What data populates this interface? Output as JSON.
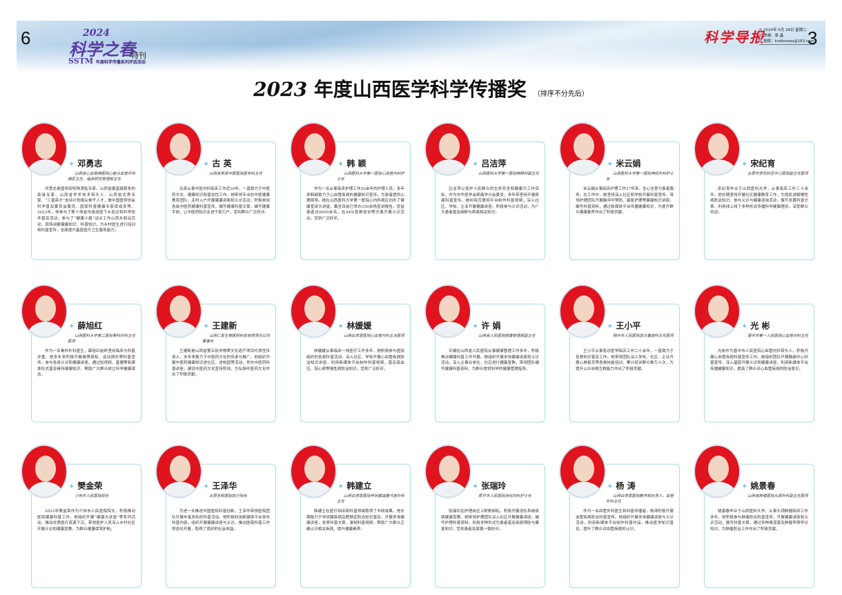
{
  "header": {
    "left_page_number": "6",
    "right_page_number": "3",
    "logo_year": "2024",
    "logo_main": "科学之春",
    "logo_sstm": "SSTM",
    "logo_sub": "年度科学传播系列评选活动",
    "special_issue": "特刊",
    "masthead": "科学导报",
    "date": "2024年 5月 28日  星期二",
    "editor": "责编：梁 晶",
    "email": "投稿：kxdbnews@163.com"
  },
  "title": {
    "year": "2023",
    "text": " 年度山西医学科学传播奖",
    "note": "（排序不分先后）"
  },
  "awardees": [
    {
      "name": "邓勇志",
      "affiliation": "山西省心血管病医院心脏大血管外科病区主任、临床研究管理部主任",
      "bio": "邓勇志是国务院特殊津贴专家、山西省委直接联系的高级专家、山西省学术技术带头人、山西省优秀专家、“三晋英才”支持计划拔尖骨干人才，是中国医师协会科学普及委员会委员、国家科普健康专家库成员等。2023年，他参与了数十场省市级送医下乡巡诊和科学技术普及活动，参与了“健康小屋”试点工作山西永和站活动，现场讲解健康知识、科普知识，为乡村医生进行培训和科普宣传，全面提升基层医疗卫生服务能力。"
    },
    {
      "name": "古 英",
      "affiliation": "山西省某县中医医院医务科主任",
      "bio": "古英从事中医内科临床工作近20年，一直致力于中医药文化、健康知识和普及性工作。她带领专业的中医健康教育团队，走村入户开展健康讲座和义诊活动，积极参加各级中医药健康科普宣传，撰写健康科普文章，编写健康手册，让中医药知识走进千家万户，受到群众广泛好评。"
    },
    {
      "name": "韩 颖",
      "affiliation": "山西医科大学第一医院心血管内科护士长",
      "bio": "作为一名从事临床护理工作20余年的护理人员，多年来韩颖致力于心血管疾病的健康知识宣传，为患者提供心理疏导。她在山西医科大学第一医院心内科病区创办了健康宣讲大讲堂，截至目前已举办250余场宣讲报告，受益患者达6000余名，在AED急救培训等方面开展义诊活动，受到广泛好评。"
    },
    {
      "name": "吕洁萍",
      "affiliation": "山西医科大学第一医院麻醉科副主任",
      "bio": "吕洁萍以保护人民群众的生命安全和健康为工作目标，作为中华医学会疼痛学分会委员，多年来坚持开展疼痛科普宣传。她利用互联网平台制作科普视频，深入社区、学校、企业开展健康讲座，积极参与义诊活动，为广大患者普及麻醉与疼痛相关知识。"
    },
    {
      "name": "米云娟",
      "affiliation": "山西医科大学第一医院神经外科护士长",
      "bio": "米云娟从事临床护理工作27年来，全心全意为患者服务。在工作中，她坚持深入社区和学校开展科普宣传，带领护理团队开展脑卒中预防、康复护理等健康知识讲座，编写科普资料，通过新媒体平台传播健康知识，为提升群众健康素养作出了积极贡献。"
    },
    {
      "name": "宋纪育",
      "affiliation": "太原市杏花岭区中心医院副主任医师",
      "bio": "宋纪育毕业于山西医科大学，从事临床工作三十余年。他长期坚持开展社区健康教育工作，为居民讲解慢性病防治知识，参与义诊与健康咨询活动，撰写多篇科普文章，利用线上线下多种形式传播科学健康理念，深受群众欢迎。"
    },
    {
      "name": "薛旭红",
      "affiliation": "山西医科大学第二医院骨科外科主任医师",
      "bio": "作为一名骨科外科医生，薛旭红始终坚持临床与科普并重。他多年来积极开展骨质疏松、运动损伤等科普宣传，参与各类义诊和健康讲座，通过短视频、直播等新媒体形式普及骨科健康知识，帮助广大群众树立科学健康观念。"
    },
    {
      "name": "王建新",
      "affiliation": "山西仁爱生物医药科技有限责任公司董事长",
      "bio": "王建新是山西省第五批非物质文化遗产项目代表性传承人，多年来致力于中医药文化的传承与推广。他组织开展中医药健康知识进社区、进校园等活动，举办中医药科普讲座，建设中医药文化宣传阵地，为弘扬中医药文化作出了积极贡献。"
    },
    {
      "name": "林媛媛",
      "affiliation": "山西白求恩医院心血管内科主治医师",
      "bio": "林媛媛从事临床一线医疗工作多年。她积极参与医院组织的各类科普活动，深入社区、学校开展心血管疾病防治知识讲座，利用新媒体平台制作科普视频，普及高血压、冠心病等慢性病防治知识，受到广泛好评。"
    },
    {
      "name": "许 娟",
      "affiliation": "山西省人民医院健康管理部副主任",
      "bio": "许娟在山西省人民医院从事健康管理工作多年，积极推动健康科普工作开展。她组织开展多场健康讲座和义诊活动，深入企事业单位、社区进行健康宣教，带领团队编写健康科普资料，为群众提供科学的健康管理指导。"
    },
    {
      "name": "王小平",
      "affiliation": "朔州市人民医院急诊重症科主任医师",
      "bio": "王小平从事急诊医学临床工作二十余年，一直致力于急救知识普及工作。他带领团队深入学校、社区、企业开展心肺复苏等急救技能培训，累计培训群众数万人次，为提升公众自救互救能力作出了积极贡献。"
    },
    {
      "name": "光 彬",
      "affiliation": "晋中市第一人民医院心血管内科主任",
      "bio": "光彬作为晋中市人民医院心血管内科带头人，积极开展心血管疾病科普宣传工作。她组织团队开展胸痛中心科普宣传，深入基层开展义诊和健康讲座，利用新媒体平台传播健康知识，提高了群众对心血管疾病的防治意识。"
    },
    {
      "name": "樊金荣",
      "affiliation": "介休市人民医院院长",
      "bio": "2023年樊金荣作为介休市人民医院院长，积极推动医院健康科普工作。他组织开展“健康大讲堂”等系列活动，推动优质医疗资源下沉，带领医护人员深入乡村社区开展义诊和健康宣教，为群众健康保驾护航。"
    },
    {
      "name": "王泽华",
      "affiliation": "太原圣和医院执行院长",
      "bio": "为进一步推进中国医院科普创新，王泽华带领医院团队开展丰富多彩的科普活动。他积极利用新媒体平台发布科普内容，组织开展健康讲座与义诊，推动医院科普工作常态化开展，取得了良好的社会效益。"
    },
    {
      "name": "韩建立",
      "affiliation": "山西白求恩医院甲状腺减重代谢外科主任",
      "bio": "韩建立在医疗临床和科普领域取得了丰硕成果。他长期致力于甲状腺疾病及肥胖症防治知识普及，开展多场健康讲座，发表科普文章，录制科普视频，帮助广大群众正确认识相关疾病，提升健康素养。"
    },
    {
      "name": "张瑞玲",
      "affiliation": "原平市人民医院消化内科护士长",
      "bio": "张瑞玲在护理岗位上默默耕耘，积极开展消化系统疾病健康宣教。她带领护理团队深入社区开展健康讲座，编写护理科普资料，利用多种形式为患者普及疾病预防与康复知识，受到患者及家属一致好评。"
    },
    {
      "name": "杨 涛",
      "affiliation": "山西白求恩医院教学部负责人、血管外科主任",
      "bio": "作为一名血管外科医生和科普传播者，杨涛积极开展血管疾病防治科普宣传。他组织开展多场健康讲座与义诊活动，利用新媒体平台制作科普作品，推动医学知识普及，提升了群众对血管疾病的认识。"
    },
    {
      "name": "姚景春",
      "affiliation": "山西省肿瘤医院头颈外科副主任医师",
      "bio": "姚景春毕业于山西医科大学，从事头颈肿瘤临床工作多年。他积极参与肿瘤防治科普宣传，开展健康讲座和义诊活动，撰写科普文章，通过多种渠道普及肿瘤早筛早诊知识，为肿瘤防治工作作出了积极贡献。"
    }
  ],
  "colors": {
    "photo_bg": "#e0141e",
    "card_border": "#a9dde6",
    "bullet": "#7cc4ea",
    "masthead": "#d41a2a",
    "logo": "#5a3aa0"
  }
}
